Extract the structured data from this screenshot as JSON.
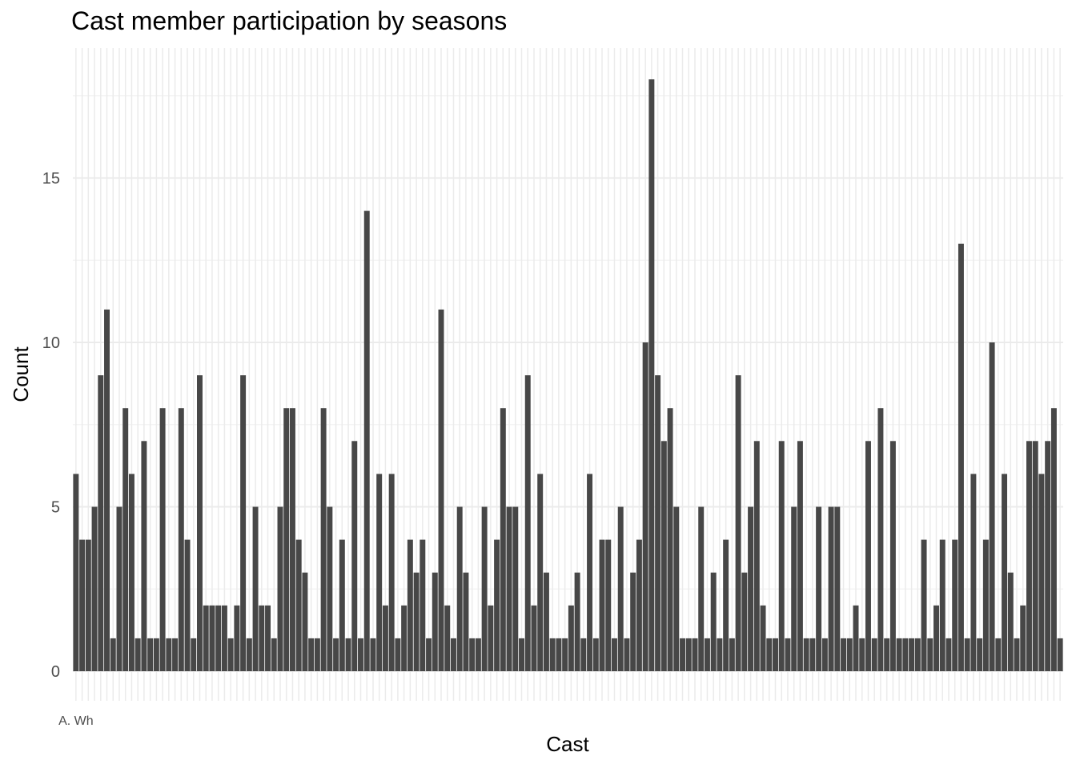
{
  "chart_data": {
    "type": "bar",
    "title": "Cast member participation by seasons",
    "xlabel": "Cast",
    "ylabel": "Count",
    "ylim": [
      0,
      18.9
    ],
    "yticks": [
      0,
      5,
      10,
      15
    ],
    "grid": true,
    "first_category_visible": "A. Wh",
    "values": [
      6,
      4,
      4,
      5,
      9,
      11,
      1,
      5,
      8,
      6,
      1,
      7,
      1,
      1,
      8,
      1,
      1,
      8,
      4,
      1,
      9,
      2,
      2,
      2,
      2,
      1,
      2,
      9,
      1,
      5,
      2,
      2,
      1,
      5,
      8,
      8,
      4,
      3,
      1,
      1,
      8,
      5,
      1,
      4,
      1,
      7,
      1,
      14,
      1,
      6,
      2,
      6,
      1,
      2,
      4,
      3,
      4,
      1,
      3,
      11,
      2,
      1,
      5,
      3,
      1,
      1,
      5,
      2,
      4,
      8,
      5,
      5,
      1,
      9,
      2,
      6,
      3,
      1,
      1,
      1,
      2,
      3,
      1,
      6,
      1,
      4,
      4,
      1,
      5,
      1,
      3,
      4,
      10,
      18,
      9,
      7,
      8,
      5,
      1,
      1,
      1,
      5,
      1,
      3,
      1,
      4,
      1,
      9,
      3,
      5,
      7,
      2,
      1,
      1,
      7,
      1,
      5,
      7,
      1,
      1,
      5,
      1,
      5,
      5,
      1,
      1,
      2,
      1,
      7,
      1,
      8,
      1,
      7,
      1,
      1,
      1,
      1,
      4,
      1,
      2,
      4,
      1,
      4,
      13,
      1,
      6,
      1,
      4,
      10,
      1,
      6,
      3,
      1,
      2,
      7,
      7,
      6,
      7,
      8,
      1
    ]
  }
}
